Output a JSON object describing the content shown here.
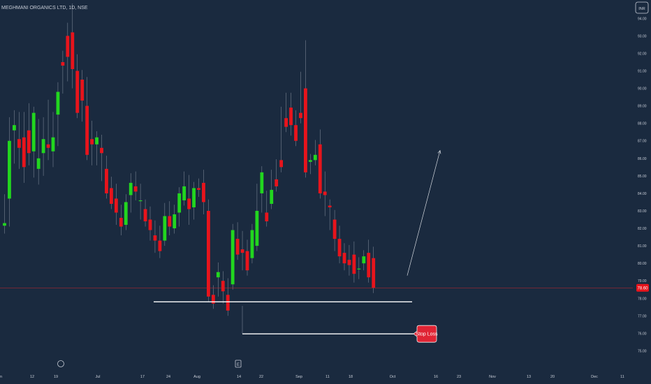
{
  "header": {
    "symbol_label": "MEGHMANI ORGANICS LTD, 1D, NSE",
    "currency_label": "INR"
  },
  "annotations": {
    "stop_loss_label": "Stop Loss",
    "event_marker_label": "E"
  },
  "colors": {
    "background": "#1a2a3f",
    "up": "#22d61f",
    "down": "#e8141c",
    "axis_text": "#c7ccd6",
    "price_line": "#c7252c",
    "price_tag": "#e8141c",
    "stop_loss_tag": "#e02434"
  },
  "chart_data": {
    "type": "candlestick",
    "title": "MEGHMANI ORGANICS LTD, 1D, NSE",
    "ylim": [
      74.7,
      95.05
    ],
    "y_ticks": [
      "94.00",
      "93.00",
      "92.00",
      "91.00",
      "90.00",
      "89.00",
      "88.00",
      "87.00",
      "86.00",
      "85.00",
      "84.00",
      "83.00",
      "82.00",
      "81.00",
      "80.00",
      "79.00",
      "78.00",
      "77.00",
      "76.00",
      "75.00"
    ],
    "x_ticks": [
      "n",
      "12",
      "19",
      "Jul",
      "17",
      "24",
      "Aug",
      "14",
      "22",
      "Sep",
      "11",
      "18",
      "Oct",
      "16",
      "23",
      "Nov",
      "13",
      "20",
      "Dec",
      "11"
    ],
    "last_price": "78.60",
    "last_price_value": 78.6,
    "support_level": 77.8,
    "stop_loss_level": 75.97,
    "projection": {
      "from": 79.3,
      "to": 86.45
    },
    "candles": [
      [
        82.15,
        82.0,
        83.6,
        82.3
      ],
      [
        83.7,
        82.4,
        88.0,
        87.0
      ],
      [
        87.6,
        86.0,
        88.4,
        87.9
      ],
      [
        87.1,
        85.7,
        88.3,
        86.6
      ],
      [
        87.2,
        84.9,
        88.3,
        85.5
      ],
      [
        87.6,
        85.9,
        88.8,
        86.3
      ],
      [
        86.4,
        85.2,
        88.0,
        88.6
      ],
      [
        85.4,
        84.8,
        87.9,
        86.0
      ],
      [
        86.3,
        85.3,
        88.0,
        87.1
      ],
      [
        86.8,
        86.2,
        89.0,
        86.6
      ],
      [
        86.4,
        85.8,
        88.3,
        87.2
      ],
      [
        88.5,
        87.0,
        90.0,
        89.8
      ],
      [
        91.5,
        90.0,
        91.8,
        91.3
      ],
      [
        93.0,
        90.7,
        93.4,
        91.8
      ],
      [
        93.2,
        90.3,
        94.5,
        91.1
      ],
      [
        91.0,
        89.0,
        91.6,
        88.6
      ],
      [
        90.5,
        88.4,
        90.7,
        89.3
      ],
      [
        89.0,
        86.9,
        90.3,
        86.2
      ],
      [
        87.1,
        85.9,
        87.8,
        86.8
      ],
      [
        86.8,
        85.9,
        87.1,
        87.2
      ],
      [
        86.6,
        85.0,
        87.0,
        86.3
      ],
      [
        85.4,
        84.2,
        85.8,
        84.0
      ],
      [
        84.3,
        83.6,
        84.6,
        83.4
      ],
      [
        83.7,
        82.5,
        84.2,
        82.9
      ],
      [
        82.6,
        81.9,
        83.0,
        82.1
      ],
      [
        82.2,
        82.9,
        83.6,
        83.5
      ],
      [
        83.9,
        83.2,
        84.8,
        84.6
      ],
      [
        84.4,
        83.9,
        84.9,
        84.1
      ],
      [
        83.6,
        82.8,
        84.2,
        83.6
      ],
      [
        83.1,
        82.8,
        83.3,
        82.4
      ],
      [
        82.5,
        81.6,
        82.9,
        81.9
      ],
      [
        81.6,
        80.9,
        82.1,
        81.3
      ],
      [
        81.3,
        80.6,
        81.8,
        80.7
      ],
      [
        81.3,
        82.8,
        83.1,
        82.7
      ],
      [
        82.7,
        81.9,
        83.2,
        82.1
      ],
      [
        82.0,
        82.5,
        83.0,
        82.8
      ],
      [
        82.9,
        82.4,
        83.6,
        84.0
      ],
      [
        83.6,
        84.4,
        84.9,
        84.4
      ],
      [
        83.7,
        82.5,
        84.7,
        83.1
      ],
      [
        83.2,
        82.8,
        83.8,
        84.3
      ],
      [
        84.3,
        84.1,
        84.5,
        84.2
      ],
      [
        84.6,
        83.1,
        85.0,
        83.5
      ],
      [
        83.0,
        78.7,
        83.3,
        78.1
      ],
      [
        78.2,
        78.0,
        78.4,
        77.7
      ],
      [
        79.2,
        78.4,
        79.7,
        79.5
      ],
      [
        79.0,
        78.0,
        79.2,
        78.4
      ],
      [
        78.2,
        78.8,
        78.4,
        77.3
      ],
      [
        78.8,
        80.9,
        81.4,
        81.9
      ],
      [
        81.4,
        81.0,
        82.0,
        80.5
      ],
      [
        80.8,
        79.9,
        81.5,
        80.6
      ],
      [
        80.7,
        80.1,
        81.0,
        79.6
      ],
      [
        80.3,
        80.9,
        81.2,
        81.9
      ],
      [
        81.0,
        84.0,
        84.2,
        83.0
      ],
      [
        84.0,
        83.2,
        84.4,
        85.2
      ],
      [
        82.9,
        83.6,
        83.8,
        82.4
      ],
      [
        83.4,
        84.6,
        85.0,
        84.2
      ],
      [
        84.8,
        85.1,
        85.6,
        84.4
      ],
      [
        85.9,
        88.2,
        88.6,
        85.5
      ],
      [
        88.3,
        88.8,
        89.4,
        87.8
      ],
      [
        88.9,
        87.6,
        89.4,
        87.9
      ],
      [
        87.9,
        88.1,
        88.4,
        87.0
      ],
      [
        88.6,
        90.2,
        90.6,
        88.3
      ],
      [
        90.0,
        85.4,
        92.4,
        85.2
      ],
      [
        85.8,
        85.4,
        85.6,
        85.9
      ],
      [
        85.9,
        86.5,
        86.7,
        86.2
      ],
      [
        86.8,
        84.1,
        87.3,
        84.0
      ],
      [
        84.1,
        83.0,
        84.9,
        83.9
      ],
      [
        83.3,
        82.2,
        82.8,
        83.2
      ],
      [
        82.5,
        81.0,
        82.7,
        81.4
      ],
      [
        81.4,
        80.3,
        81.8,
        80.4
      ],
      [
        80.6,
        79.9,
        80.8,
        80.0
      ],
      [
        80.2,
        79.6,
        80.7,
        79.9
      ],
      [
        80.5,
        79.2,
        80.9,
        79.4
      ],
      [
        79.7,
        79.4,
        80.0,
        79.7
      ],
      [
        80.0,
        79.9,
        80.3,
        80.4
      ],
      [
        80.6,
        79.8,
        81.0,
        79.2
      ],
      [
        80.3,
        79.2,
        80.6,
        78.6
      ]
    ]
  }
}
